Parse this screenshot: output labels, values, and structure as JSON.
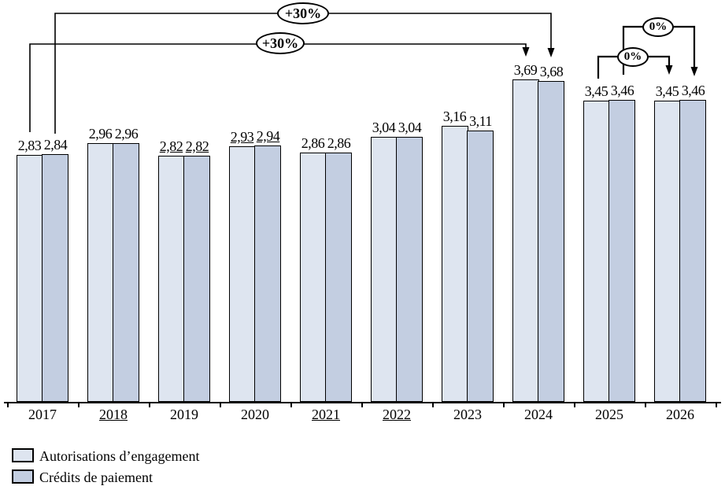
{
  "chart_data": {
    "type": "bar",
    "title": "",
    "xlabel": "",
    "ylabel": "",
    "grid": false,
    "legend_position": "bottom-left",
    "ylim": [
      0,
      4.6
    ],
    "categories": [
      "2017",
      "2018",
      "2019",
      "2020",
      "2021",
      "2022",
      "2023",
      "2024",
      "2025",
      "2026"
    ],
    "category_label_underline": [
      false,
      true,
      false,
      false,
      true,
      true,
      false,
      false,
      false,
      false
    ],
    "value_label_underline": [
      false,
      false,
      true,
      true,
      false,
      false,
      false,
      false,
      false,
      false
    ],
    "series": [
      {
        "name": "Autorisations d’engagement",
        "values": [
          2.83,
          2.96,
          2.82,
          2.93,
          2.86,
          3.04,
          3.16,
          3.69,
          3.45,
          3.45
        ],
        "labels": [
          "2,83",
          "2,96",
          "2,82",
          "2,93",
          "2,86",
          "3,04",
          "3,16",
          "3,69",
          "3,45",
          "3,45"
        ],
        "color": "#dee5f0"
      },
      {
        "name": "Crédits de paiement",
        "values": [
          2.84,
          2.96,
          2.82,
          2.94,
          2.86,
          3.04,
          3.11,
          3.68,
          3.46,
          3.46
        ],
        "labels": [
          "2,84",
          "2,96",
          "2,82",
          "2,94",
          "2,86",
          "3,04",
          "3,11",
          "3,68",
          "3,46",
          "3,46"
        ],
        "color": "#c3cee1"
      }
    ],
    "annotations": [
      {
        "text": "+30%",
        "from": "2017 Crédits de paiement",
        "to": "2024 Crédits de paiement"
      },
      {
        "text": "+30%",
        "from": "2017 Autorisations d’engagement",
        "to": "2024 Autorisations d’engagement"
      },
      {
        "text": "0%",
        "from": "2025 Autorisations d’engagement",
        "to": "2026 Autorisations d’engagement"
      },
      {
        "text": "0%",
        "from": "2025 Crédits de paiement",
        "to": "2026 Crédits de paiement"
      }
    ]
  },
  "colors": {
    "bar_border": "#000000",
    "axis": "#000000",
    "background": "#ffffff"
  }
}
